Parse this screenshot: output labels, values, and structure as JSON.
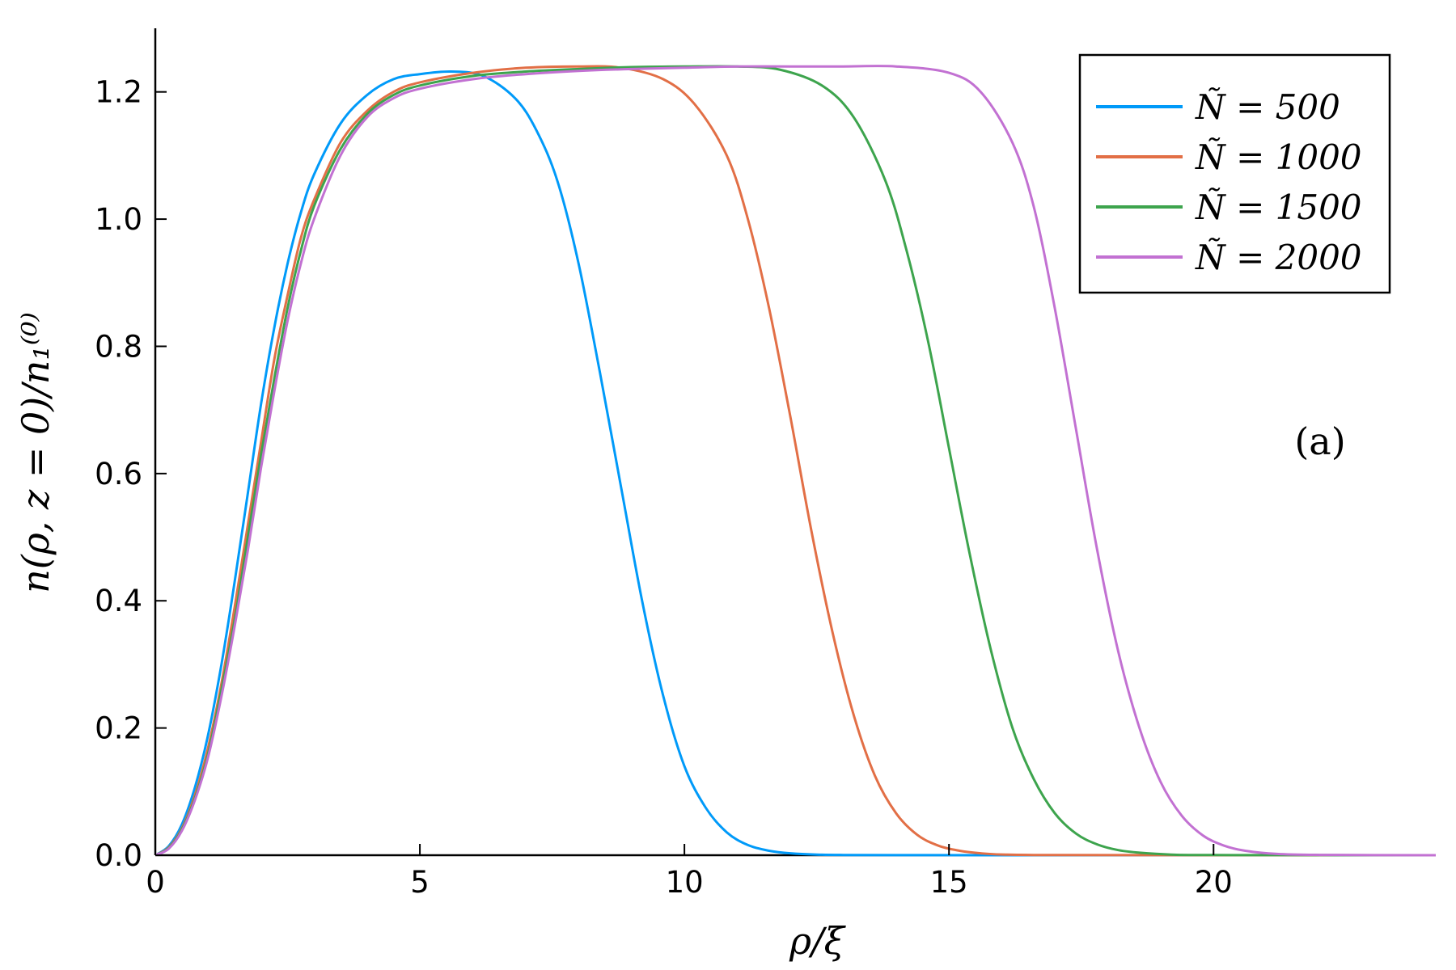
{
  "chart_data": {
    "type": "line",
    "title": "",
    "xlabel": "ρ/ξ",
    "ylabel": "n(ρ, z = 0)/n₁⁽⁰⁾",
    "xlim": [
      0,
      24.2
    ],
    "ylim": [
      0,
      1.3
    ],
    "xticks": [
      0,
      5,
      10,
      15,
      20
    ],
    "xtick_labels": [
      "0",
      "5",
      "10",
      "15",
      "20"
    ],
    "yticks": [
      0.0,
      0.2,
      0.4,
      0.6,
      0.8,
      1.0,
      1.2
    ],
    "ytick_labels": [
      "0.0",
      "0.2",
      "0.4",
      "0.6",
      "0.8",
      "1.0",
      "1.2"
    ],
    "grid": false,
    "legend_position": "top-right",
    "annotation": "(a)",
    "series": [
      {
        "name": "Ñ = 500",
        "color": "#009af9",
        "x": [
          0,
          0.25,
          0.5,
          0.75,
          1,
          1.25,
          1.5,
          1.75,
          2,
          2.25,
          2.5,
          2.75,
          3,
          3.5,
          4,
          4.5,
          5,
          5.6,
          6.2,
          6.8,
          7.2,
          7.6,
          8.0,
          8.4,
          8.8,
          9.2,
          9.6,
          10.0,
          10.4,
          10.8,
          11.2,
          11.6,
          12.0,
          12.5,
          13,
          14,
          16,
          20,
          24.2
        ],
        "y": [
          0,
          0.014,
          0.048,
          0.107,
          0.19,
          0.3,
          0.43,
          0.57,
          0.71,
          0.83,
          0.93,
          1.01,
          1.07,
          1.15,
          1.195,
          1.22,
          1.228,
          1.232,
          1.225,
          1.19,
          1.14,
          1.06,
          0.93,
          0.76,
          0.58,
          0.4,
          0.25,
          0.14,
          0.075,
          0.036,
          0.016,
          0.007,
          0.003,
          0.001,
          0.0004,
          0.0001,
          0,
          0,
          0
        ]
      },
      {
        "name": "Ñ = 1000",
        "color": "#e26f46",
        "x": [
          0,
          0.25,
          0.5,
          0.75,
          1,
          1.25,
          1.5,
          1.75,
          2,
          2.25,
          2.5,
          2.75,
          3,
          3.5,
          4,
          4.5,
          5,
          6,
          7,
          8,
          8.8,
          9.6,
          10.2,
          10.8,
          11.2,
          11.6,
          12.0,
          12.4,
          12.8,
          13.2,
          13.6,
          14.0,
          14.4,
          14.8,
          15.2,
          15.6,
          16,
          17,
          20,
          24.2
        ],
        "y": [
          0,
          0.012,
          0.042,
          0.095,
          0.17,
          0.27,
          0.39,
          0.52,
          0.65,
          0.78,
          0.88,
          0.97,
          1.03,
          1.12,
          1.17,
          1.2,
          1.215,
          1.23,
          1.238,
          1.24,
          1.238,
          1.22,
          1.18,
          1.1,
          1.0,
          0.86,
          0.69,
          0.51,
          0.35,
          0.22,
          0.125,
          0.066,
          0.032,
          0.015,
          0.007,
          0.003,
          0.0012,
          0.0002,
          0,
          0
        ]
      },
      {
        "name": "Ñ = 1500",
        "color": "#3da44d",
        "x": [
          0,
          0.25,
          0.5,
          0.75,
          1,
          1.25,
          1.5,
          1.75,
          2,
          2.25,
          2.5,
          2.75,
          3,
          3.5,
          4,
          4.5,
          5,
          6,
          7,
          8,
          9,
          10,
          11,
          11.8,
          12.6,
          13.2,
          13.8,
          14.2,
          14.6,
          15.0,
          15.4,
          15.8,
          16.2,
          16.6,
          17.0,
          17.4,
          17.8,
          18.2,
          18.6,
          19.2,
          20,
          24.2
        ],
        "y": [
          0,
          0.011,
          0.04,
          0.09,
          0.16,
          0.26,
          0.37,
          0.5,
          0.63,
          0.75,
          0.86,
          0.95,
          1.02,
          1.11,
          1.165,
          1.195,
          1.21,
          1.225,
          1.232,
          1.236,
          1.239,
          1.24,
          1.24,
          1.235,
          1.21,
          1.16,
          1.06,
          0.95,
          0.81,
          0.64,
          0.47,
          0.32,
          0.2,
          0.12,
          0.066,
          0.034,
          0.017,
          0.008,
          0.004,
          0.001,
          0.0003,
          0
        ]
      },
      {
        "name": "Ñ = 2000",
        "color": "#c271d2",
        "x": [
          0,
          0.25,
          0.5,
          0.75,
          1,
          1.25,
          1.5,
          1.75,
          2,
          2.25,
          2.5,
          2.75,
          3,
          3.5,
          4,
          4.5,
          5,
          6,
          7,
          8,
          9,
          10,
          11,
          12,
          13,
          14,
          15,
          15.6,
          16.2,
          16.6,
          17.0,
          17.4,
          17.8,
          18.2,
          18.6,
          19.0,
          19.4,
          19.8,
          20.2,
          20.6,
          21.2,
          22,
          24.2
        ],
        "y": [
          0,
          0.01,
          0.038,
          0.087,
          0.155,
          0.25,
          0.36,
          0.48,
          0.61,
          0.73,
          0.84,
          0.93,
          1.0,
          1.1,
          1.16,
          1.19,
          1.205,
          1.22,
          1.228,
          1.233,
          1.236,
          1.238,
          1.24,
          1.24,
          1.24,
          1.24,
          1.23,
          1.2,
          1.12,
          1.02,
          0.86,
          0.67,
          0.48,
          0.32,
          0.2,
          0.115,
          0.062,
          0.031,
          0.015,
          0.007,
          0.002,
          0.0005,
          0
        ]
      }
    ]
  }
}
